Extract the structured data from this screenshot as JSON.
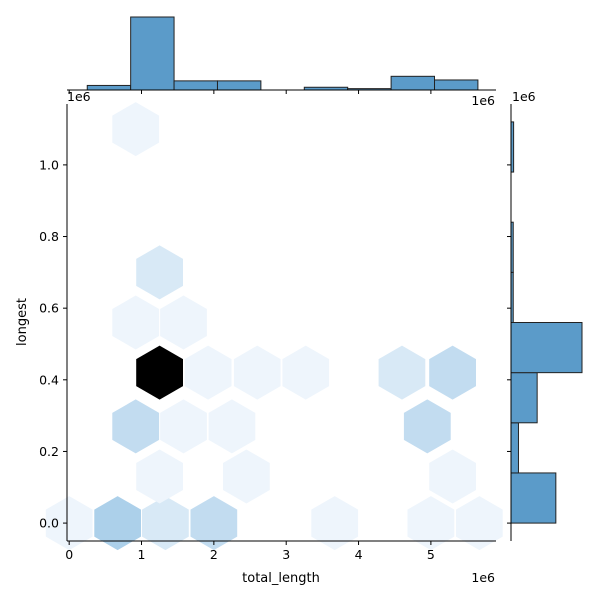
{
  "chart_data": {
    "type": "heatmap",
    "subtype": "jointplot-hexbin-with-marginal-histograms",
    "xlabel": "total_length",
    "ylabel": "longest",
    "x_offset_label": "1e6",
    "y_offset_label": "1e6",
    "xlim": [
      -0.03,
      5.9
    ],
    "ylim": [
      -0.05,
      1.17
    ],
    "x_ticks": [
      {
        "value": 0,
        "label": "0"
      },
      {
        "value": 1,
        "label": "1"
      },
      {
        "value": 2,
        "label": "2"
      },
      {
        "value": 3,
        "label": "3"
      },
      {
        "value": 4,
        "label": "4"
      },
      {
        "value": 5,
        "label": "5"
      }
    ],
    "y_ticks": [
      {
        "value": 0.0,
        "label": "0.0"
      },
      {
        "value": 0.2,
        "label": "0.2"
      },
      {
        "value": 0.4,
        "label": "0.4"
      },
      {
        "value": 0.6,
        "label": "0.6"
      },
      {
        "value": 0.8,
        "label": "0.8"
      },
      {
        "value": 1.0,
        "label": "1.0"
      }
    ],
    "marginal_x_offset_label": "1e6",
    "marginal_y_offset_label": "1e6",
    "hexbins": [
      {
        "x": 0.0,
        "y": 0.0,
        "count": 1
      },
      {
        "x": 0.67,
        "y": 0.0,
        "count": 4
      },
      {
        "x": 1.33,
        "y": 0.0,
        "count": 2
      },
      {
        "x": 2.0,
        "y": 0.0,
        "count": 3
      },
      {
        "x": 3.67,
        "y": 0.0,
        "count": 1
      },
      {
        "x": 5.0,
        "y": 0.0,
        "count": 1
      },
      {
        "x": 5.67,
        "y": 0.0,
        "count": 1
      },
      {
        "x": 1.25,
        "y": 0.13,
        "count": 1
      },
      {
        "x": 2.45,
        "y": 0.13,
        "count": 1
      },
      {
        "x": 5.3,
        "y": 0.13,
        "count": 1
      },
      {
        "x": 0.92,
        "y": 0.27,
        "count": 3
      },
      {
        "x": 1.58,
        "y": 0.27,
        "count": 1
      },
      {
        "x": 2.25,
        "y": 0.27,
        "count": 1
      },
      {
        "x": 4.95,
        "y": 0.27,
        "count": 3
      },
      {
        "x": 1.25,
        "y": 0.42,
        "count": 18
      },
      {
        "x": 1.92,
        "y": 0.42,
        "count": 1
      },
      {
        "x": 2.6,
        "y": 0.42,
        "count": 1
      },
      {
        "x": 3.27,
        "y": 0.42,
        "count": 1
      },
      {
        "x": 4.6,
        "y": 0.42,
        "count": 2
      },
      {
        "x": 5.3,
        "y": 0.42,
        "count": 3
      },
      {
        "x": 0.92,
        "y": 0.56,
        "count": 1
      },
      {
        "x": 1.58,
        "y": 0.56,
        "count": 1
      },
      {
        "x": 1.25,
        "y": 0.7,
        "count": 2
      },
      {
        "x": 0.92,
        "y": 1.1,
        "count": 1
      }
    ],
    "x_marginal_histogram": {
      "bins": [
        {
          "start": 0.25,
          "end": 0.85,
          "count": 1
        },
        {
          "start": 0.85,
          "end": 1.45,
          "count": 16
        },
        {
          "start": 1.45,
          "end": 2.05,
          "count": 2
        },
        {
          "start": 2.05,
          "end": 2.65,
          "count": 2
        },
        {
          "start": 2.65,
          "end": 3.25,
          "count": 0
        },
        {
          "start": 3.25,
          "end": 3.85,
          "count": 0.6
        },
        {
          "start": 3.85,
          "end": 4.45,
          "count": 0.3
        },
        {
          "start": 4.45,
          "end": 5.05,
          "count": 3
        },
        {
          "start": 5.05,
          "end": 5.65,
          "count": 2.2
        }
      ]
    },
    "y_marginal_histogram": {
      "bins": [
        {
          "start": 0.0,
          "end": 0.14,
          "count": 6
        },
        {
          "start": 0.14,
          "end": 0.28,
          "count": 1
        },
        {
          "start": 0.28,
          "end": 0.42,
          "count": 3.5
        },
        {
          "start": 0.42,
          "end": 0.56,
          "count": 9.5
        },
        {
          "start": 0.56,
          "end": 0.7,
          "count": 0.3
        },
        {
          "start": 0.7,
          "end": 0.84,
          "count": 0.3
        },
        {
          "start": 0.84,
          "end": 0.98,
          "count": 0
        },
        {
          "start": 0.98,
          "end": 1.12,
          "count": 0.35
        }
      ]
    },
    "colors": {
      "bar_fill": "#5b9bc9",
      "bar_edge": "#222222",
      "hex_low": "#eef5fc",
      "hex_high": "#000000",
      "axis": "#000000"
    }
  }
}
